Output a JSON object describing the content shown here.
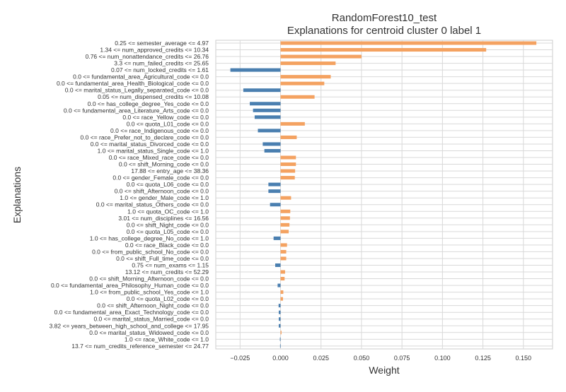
{
  "chart_data": {
    "type": "bar",
    "orientation": "horizontal",
    "title": "RandomForest10_test",
    "subtitle": "Explanations for centroid cluster 0 label 1",
    "xlabel": "Weight",
    "ylabel": "Explanations",
    "xlim": [
      -0.04,
      0.168
    ],
    "xticks": [
      -0.025,
      0.0,
      0.025,
      0.05,
      0.075,
      0.1,
      0.125,
      0.15
    ],
    "xtick_labels": [
      "−0.025",
      "0.000",
      "0.025",
      "0.050",
      "0.075",
      "0.100",
      "0.125",
      "0.150"
    ],
    "grid": true,
    "colors": {
      "positive": "#f4a261",
      "negative": "#4a7fb0"
    },
    "categories": [
      "0.25 <= semester_average <= 4.97",
      "1.34 <= num_approved_credits <= 10.34",
      "0.76 <= num_nonattendance_credits <= 26.76",
      "3.3 <= num_failed_credits <= 25.65",
      "0.07 <= num_locked_credits <= 1.61",
      "0.0 <= fundamental_area_Agricultural_code <= 0.0",
      "0.0 <= fundamental_area_Health_Biological_code <= 0.0",
      "0.0 <= marital_status_Legally_separated_code <= 0.0",
      "0.05 <= num_dispensed_credits <= 10.08",
      "0.0 <= has_college_degree_Yes_code <= 0.0",
      "0.0 <= fundamental_area_Literature_Arts_code <= 0.0",
      "0.0 <= race_Yellow_code <= 0.0",
      "0.0 <= quota_L01_code <= 0.0",
      "0.0 <= race_Indigenous_code <= 0.0",
      "0.0 <= race_Prefer_not_to_declare_code <= 0.0",
      "0.0 <= marital_status_Divorced_code <= 0.0",
      "1.0 <= marital_status_Single_code <= 1.0",
      "0.0 <= race_Mixed_race_code <= 0.0",
      "0.0 <= shift_Morning_code <= 0.0",
      "17.88 <= entry_age <= 38.36",
      "0.0 <= gender_Female_code <= 0.0",
      "0.0 <= quota_L06_code <= 0.0",
      "0.0 <= shift_Afternoon_code <= 0.0",
      "1.0 <= gender_Male_code <= 1.0",
      "0.0 <= marital_status_Others_code <= 0.0",
      "1.0 <= quota_OC_code <= 1.0",
      "3.01 <= num_disciplines <= 16.56",
      "0.0 <= shift_Night_code <= 0.0",
      "0.0 <= quota_L05_code <= 0.0",
      "1.0 <= has_college_degree_No_code <= 1.0",
      "0.0 <= race_Black_code <= 0.0",
      "0.0 <= from_public_school_No_code <= 0.0",
      "0.0 <= shift_Full_time_code <= 0.0",
      "0.75 <= num_exams <= 1.15",
      "13.12 <= num_credits <= 52.29",
      "0.0 <= shift_Morning_Afternoon_code <= 0.0",
      "0.0 <= fundamental_area_Philosophy_Human_code <= 0.0",
      "1.0 <= from_public_school_Yes_code <= 1.0",
      "0.0 <= quota_L02_code <= 0.0",
      "0.0 <= shift_Afternoon_Night_code <= 0.0",
      "0.0 <= fundamental_area_Exact_Technology_code <= 0.0",
      "0.0 <= marital_status_Married_code <= 0.0",
      "3.82 <= years_between_high_school_and_college <= 17.95",
      "0.0 <= marital_status_Widowed_code <= 0.0",
      "1.0 <= race_White_code <= 1.0",
      "13.7 <= num_credits_reference_semester <= 24.77"
    ],
    "values": [
      0.158,
      0.127,
      0.05,
      0.034,
      -0.031,
      0.031,
      0.027,
      -0.023,
      0.021,
      -0.019,
      -0.017,
      -0.016,
      0.015,
      -0.014,
      0.01,
      -0.011,
      -0.01,
      0.0095,
      0.0095,
      0.009,
      0.0088,
      -0.0075,
      -0.0075,
      0.0065,
      -0.0065,
      0.006,
      0.0058,
      0.0055,
      0.005,
      -0.0043,
      0.004,
      0.0035,
      0.0035,
      -0.0033,
      0.0028,
      0.0025,
      -0.0018,
      0.0017,
      0.0015,
      -0.0012,
      -0.0011,
      -0.0011,
      -0.0011,
      0.0006,
      -0.0004,
      -0.0003
    ]
  }
}
